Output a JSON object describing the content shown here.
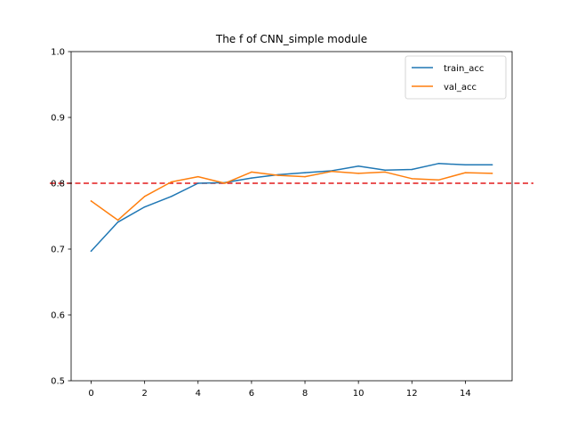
{
  "chart_data": {
    "type": "line",
    "title": "The f of CNN_simple module",
    "xlabel": "",
    "ylabel": "",
    "x": [
      0,
      1,
      2,
      3,
      4,
      5,
      6,
      7,
      8,
      9,
      10,
      11,
      12,
      13,
      14,
      15
    ],
    "xlim": [
      -0.75,
      15.75
    ],
    "ylim": [
      0.5,
      1.0
    ],
    "xticks": [
      "0",
      "2",
      "4",
      "6",
      "8",
      "10",
      "12",
      "14"
    ],
    "xtick_values": [
      0,
      2,
      4,
      6,
      8,
      10,
      12,
      14
    ],
    "yticks": [
      "0.5",
      "0.6",
      "0.7",
      "0.8",
      "0.9",
      "1.0"
    ],
    "ytick_values": [
      0.5,
      0.6,
      0.7,
      0.8,
      0.9,
      1.0
    ],
    "grid": false,
    "legend_position": "top-right",
    "series": [
      {
        "name": "train_acc",
        "color": "#1f77b4",
        "values": [
          0.697,
          0.741,
          0.764,
          0.78,
          0.8,
          0.801,
          0.808,
          0.813,
          0.816,
          0.819,
          0.826,
          0.82,
          0.821,
          0.83,
          0.828,
          0.828
        ]
      },
      {
        "name": "val_acc",
        "color": "#ff7f0e",
        "values": [
          0.773,
          0.744,
          0.78,
          0.802,
          0.81,
          0.8,
          0.817,
          0.812,
          0.81,
          0.818,
          0.815,
          0.817,
          0.807,
          0.805,
          0.816,
          0.815
        ]
      }
    ],
    "reference_line": {
      "y": 0.8,
      "color": "#e31a1c",
      "style": "dashed"
    }
  }
}
